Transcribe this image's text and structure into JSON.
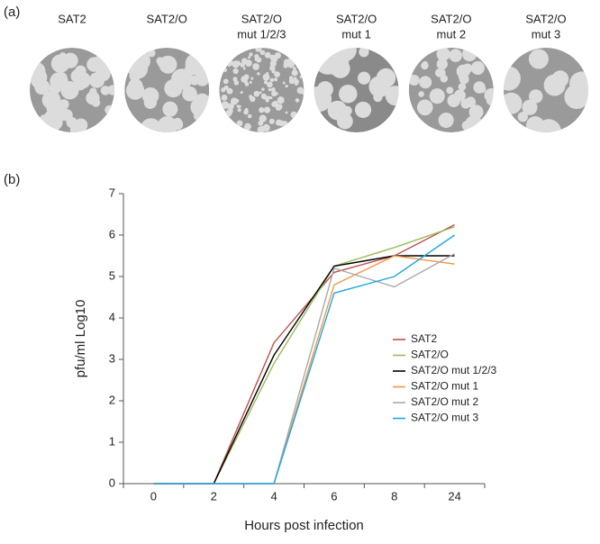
{
  "panel_labels": {
    "a": "(a)",
    "b": "(b)"
  },
  "plaques": [
    {
      "lines": [
        "SAT2"
      ]
    },
    {
      "lines": [
        "SAT2/O"
      ]
    },
    {
      "lines": [
        "SAT2/O",
        "mut 1/2/3"
      ]
    },
    {
      "lines": [
        "SAT2/O",
        "mut 1"
      ]
    },
    {
      "lines": [
        "SAT2/O",
        "mut 2"
      ]
    },
    {
      "lines": [
        "SAT2/O",
        "mut 3"
      ]
    }
  ],
  "chart_data": {
    "type": "line",
    "x_label": "Hours post infection",
    "y_label": "pfu/ml Log10",
    "categories": [
      "0",
      "2",
      "4",
      "6",
      "8",
      "24"
    ],
    "ylim": [
      0,
      7
    ],
    "yticks": [
      0,
      1,
      2,
      3,
      4,
      5,
      6,
      7
    ],
    "series": [
      {
        "name": "SAT2",
        "color": "#c0504d",
        "values": [
          0,
          0,
          3.4,
          5.1,
          5.5,
          6.25
        ]
      },
      {
        "name": "SAT2/O",
        "color": "#9bbb59",
        "values": [
          0,
          0,
          2.9,
          5.25,
          5.7,
          6.2
        ]
      },
      {
        "name": "SAT2/O mut 1/2/3",
        "color": "#000000",
        "values": [
          0,
          0,
          3.1,
          5.25,
          5.5,
          5.5
        ]
      },
      {
        "name": "SAT2/O mut 1",
        "color": "#f79646",
        "values": [
          0,
          0,
          0,
          4.8,
          5.5,
          5.3
        ]
      },
      {
        "name": "SAT2/O mut 2",
        "color": "#aaaaaa",
        "values": [
          0,
          0,
          0,
          5.2,
          4.75,
          5.55
        ]
      },
      {
        "name": "SAT2/O mut 3",
        "color": "#1fa7e0",
        "values": [
          0,
          0,
          0,
          4.6,
          5.0,
          6.0
        ]
      }
    ]
  }
}
